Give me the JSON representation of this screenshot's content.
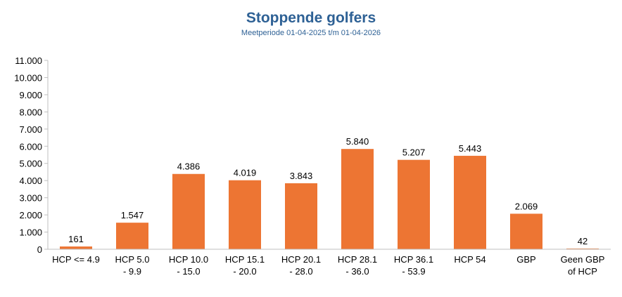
{
  "chart_data": {
    "type": "bar",
    "title": "Stoppende golfers",
    "subtitle": "Meetperiode 01-04-2025 t/m 01-04-2026",
    "xlabel": "",
    "ylabel": "",
    "categories": [
      [
        "HCP <= 4.9"
      ],
      [
        "HCP 5.0",
        "- 9.9"
      ],
      [
        "HCP 10.0",
        "- 15.0"
      ],
      [
        "HCP 15.1",
        "- 20.0"
      ],
      [
        "HCP 20.1",
        "- 28.0"
      ],
      [
        "HCP 28.1",
        "- 36.0"
      ],
      [
        "HCP 36.1",
        "- 53.9"
      ],
      [
        "HCP 54"
      ],
      [
        "GBP"
      ],
      [
        "Geen GBP",
        "of HCP"
      ]
    ],
    "values": [
      161,
      1547,
      4386,
      4019,
      3843,
      5840,
      5207,
      5443,
      2069,
      42
    ],
    "value_labels": [
      "161",
      "1.547",
      "4.386",
      "4.019",
      "3.843",
      "5.840",
      "5.207",
      "5.443",
      "2.069",
      "42"
    ],
    "ylim": [
      0,
      11000
    ],
    "yticks": [
      0,
      1000,
      2000,
      3000,
      4000,
      5000,
      6000,
      7000,
      8000,
      9000,
      10000,
      11000
    ],
    "ytick_labels": [
      "0",
      "1.000",
      "2.000",
      "3.000",
      "4.000",
      "5.000",
      "6.000",
      "7.000",
      "8.000",
      "9.000",
      "10.000",
      "11.000"
    ],
    "grid": false,
    "legend": "none",
    "bar_color": "#ed7533",
    "title_color": "#2e6195"
  }
}
